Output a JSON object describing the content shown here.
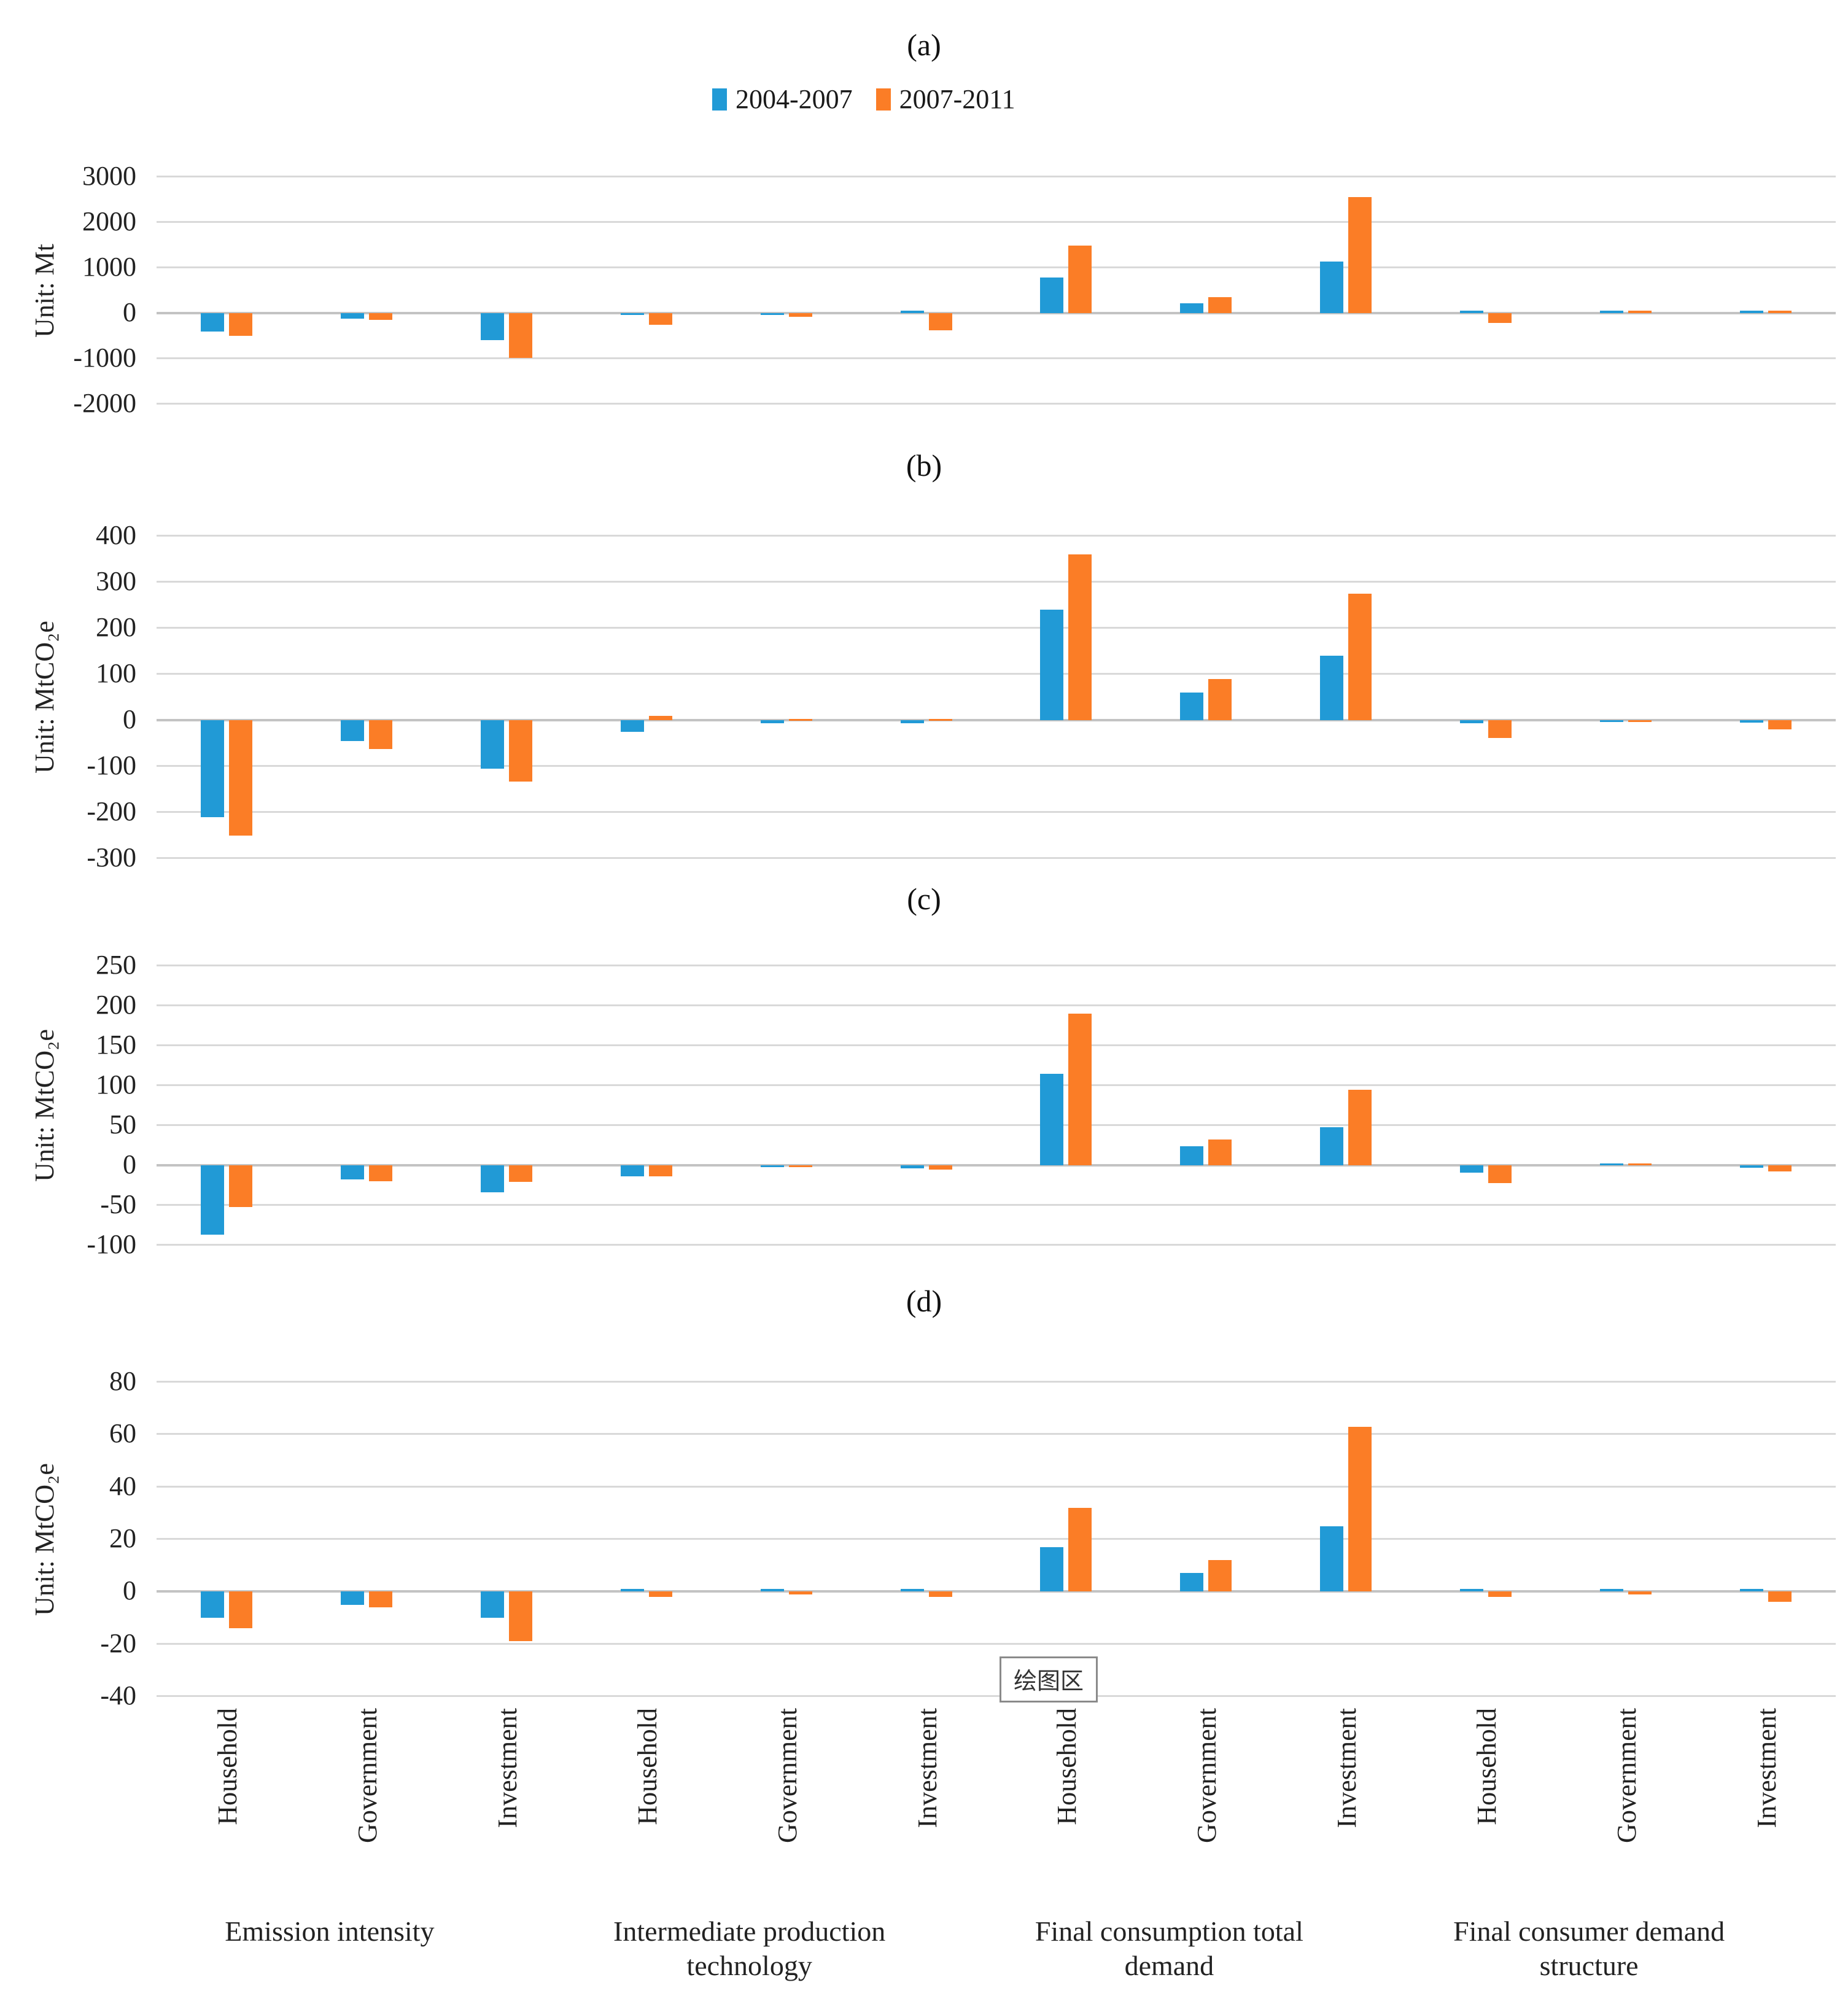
{
  "figure": {
    "tooltip": "绘图区",
    "legend": [
      {
        "label": "2004-2007",
        "color": "#219AD6"
      },
      {
        "label": "2007-2011",
        "color": "#FB7D26"
      }
    ]
  },
  "categories": [
    "Household",
    "Government",
    "Investment",
    "Household",
    "Government",
    "Investment",
    "Household",
    "Government",
    "Investment",
    "Household",
    "Government",
    "Investment"
  ],
  "groups": [
    {
      "label_lines": [
        "Emission intensity"
      ]
    },
    {
      "label_lines": [
        "Intermediate production",
        "technology"
      ]
    },
    {
      "label_lines": [
        "Final consumption total",
        "demand"
      ]
    },
    {
      "label_lines": [
        "Final consumer demand",
        "structure"
      ]
    }
  ],
  "chart_data": [
    {
      "type": "bar",
      "title": "(a)",
      "ylabel": "Unit: Mt",
      "ylim": [
        -2000,
        3000
      ],
      "yticks": [
        3000,
        2000,
        1000,
        0,
        -1000,
        -2000
      ],
      "grid": true,
      "legend_position": "top",
      "categories": [
        "Household",
        "Government",
        "Investment",
        "Household",
        "Government",
        "Investment",
        "Household",
        "Government",
        "Investment",
        "Household",
        "Government",
        "Investment"
      ],
      "series": [
        {
          "name": "2004-2007",
          "values": [
            -410,
            -120,
            -590,
            -40,
            -35,
            55,
            790,
            220,
            1135,
            55,
            55,
            60
          ]
        },
        {
          "name": "2007-2011",
          "values": [
            -500,
            -155,
            -990,
            -250,
            -80,
            -385,
            1480,
            350,
            2550,
            -210,
            50,
            55
          ]
        }
      ]
    },
    {
      "type": "bar",
      "title": "(b)",
      "ylabel": "Unit: MtCO₂e",
      "ylim": [
        -300,
        400
      ],
      "yticks": [
        400,
        300,
        200,
        100,
        0,
        -100,
        -200,
        -300
      ],
      "grid": true,
      "categories": [
        "Household",
        "Government",
        "Investment",
        "Household",
        "Government",
        "Investment",
        "Household",
        "Government",
        "Investment",
        "Household",
        "Government",
        "Investment"
      ],
      "series": [
        {
          "name": "2004-2007",
          "values": [
            -210,
            -45,
            -105,
            -25,
            -7,
            -7,
            240,
            60,
            140,
            -7,
            -3,
            -5
          ]
        },
        {
          "name": "2007-2011",
          "values": [
            -250,
            -63,
            -133,
            10,
            3,
            3,
            360,
            90,
            275,
            -38,
            -3,
            -20
          ]
        }
      ]
    },
    {
      "type": "bar",
      "title": "(c)",
      "ylabel": "Unit: MtCO₂e",
      "ylim": [
        -100,
        250
      ],
      "yticks": [
        250,
        200,
        150,
        100,
        50,
        0,
        -50,
        -100
      ],
      "grid": true,
      "categories": [
        "Household",
        "Government",
        "Investment",
        "Household",
        "Government",
        "Investment",
        "Household",
        "Government",
        "Investment",
        "Household",
        "Government",
        "Investment"
      ],
      "series": [
        {
          "name": "2004-2007",
          "values": [
            -87,
            -18,
            -34,
            -14,
            -2,
            -4,
            115,
            24,
            48,
            -9,
            2,
            -3
          ]
        },
        {
          "name": "2007-2011",
          "values": [
            -52,
            -20,
            -21,
            -14,
            -2,
            -5,
            190,
            32,
            95,
            -22,
            2,
            -8
          ]
        }
      ]
    },
    {
      "type": "bar",
      "title": "(d)",
      "ylabel": "Unit: MtCO₂e",
      "ylim": [
        -40,
        80
      ],
      "yticks": [
        80,
        60,
        40,
        20,
        0,
        -20,
        -40
      ],
      "grid": true,
      "categories": [
        "Household",
        "Government",
        "Investment",
        "Household",
        "Government",
        "Investment",
        "Household",
        "Government",
        "Investment",
        "Household",
        "Government",
        "Investment"
      ],
      "series": [
        {
          "name": "2004-2007",
          "values": [
            -10,
            -5,
            -10,
            1,
            1,
            1,
            17,
            7,
            25,
            1,
            1,
            1
          ]
        },
        {
          "name": "2007-2011",
          "values": [
            -14,
            -6,
            -19,
            -2,
            -1,
            -2,
            32,
            12,
            63,
            -2,
            -1,
            -4
          ]
        }
      ]
    }
  ]
}
